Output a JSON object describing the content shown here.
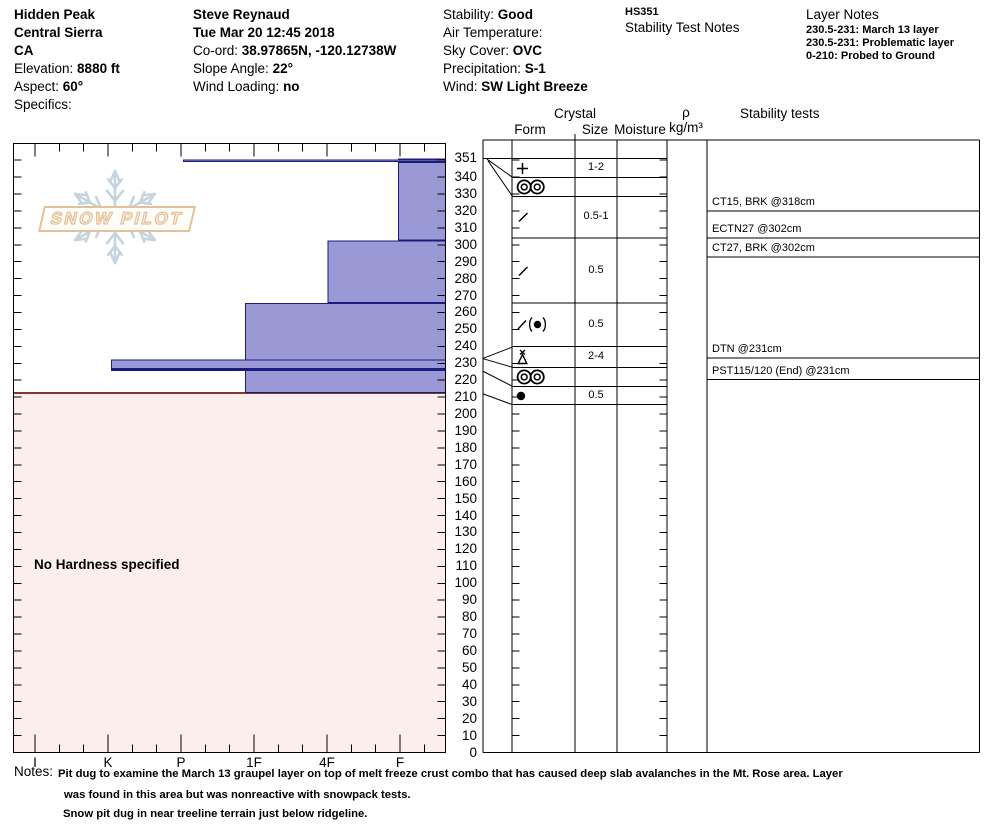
{
  "header": {
    "columns": [
      {
        "lines": [
          {
            "value": "Hidden Peak"
          },
          {
            "value": "Central Sierra"
          },
          {
            "value": "CA"
          },
          {
            "label": "Elevation: ",
            "value": "8880 ft"
          },
          {
            "label": "Aspect: ",
            "value": "60°"
          },
          {
            "label": "Specifics:"
          }
        ]
      },
      {
        "lines": [
          {
            "value": "Steve Reynaud"
          },
          {
            "value": "Tue Mar 20 12:45 2018"
          },
          {
            "label": "Co-ord: ",
            "value": "38.97865N, -120.12738W"
          },
          {
            "label": "Slope Angle: ",
            "value": "22°"
          },
          {
            "label": "Wind Loading: ",
            "value": "no"
          }
        ]
      },
      {
        "lines": [
          {
            "label": "Stability: ",
            "value": "Good"
          },
          {
            "label": "Air Temperature:"
          },
          {
            "label": "Sky Cover: ",
            "value": "OVC"
          },
          {
            "label": "Precipitation: ",
            "value": "S-1"
          },
          {
            "label": "Wind:  ",
            "value": "SW Light Breeze"
          }
        ]
      },
      {
        "lines": [
          {
            "value": "HS351",
            "small": true
          },
          {
            "label": "Stability Test Notes"
          }
        ]
      },
      {
        "lines": [
          {
            "label": "Layer Notes"
          },
          {
            "value": "230.5-231: March 13 layer",
            "small": true
          },
          {
            "value": "230.5-231: Problematic layer",
            "small": true
          },
          {
            "value": "0-210: Probed to Ground",
            "small": true
          }
        ]
      }
    ]
  },
  "watermark": {
    "text": "SNOW PILOT"
  },
  "grid_headers": {
    "crystal": "Crystal",
    "form": "Form",
    "size": "Size",
    "moisture": "Moisture",
    "rho": "ρ",
    "rho_unit": "kg/m³",
    "stability": "Stability tests"
  },
  "chart_data": {
    "type": "snow-profile",
    "depth_axis": {
      "unit": "cm",
      "min": 0,
      "max": 351,
      "tick_cm": 10,
      "surface_cm": 351
    },
    "hardness_axis": {
      "labels": [
        "I",
        "K",
        "P",
        "1F",
        "4F",
        "F"
      ]
    },
    "total_height_cm": 351,
    "layers": [
      {
        "top_cm": 351,
        "bottom_cm": 350.5,
        "form": "PP",
        "glyph": "plus",
        "size_mm": "1-2",
        "hardness": "F"
      },
      {
        "top_cm": 350.5,
        "bottom_cm": 349,
        "form": "MFcr",
        "glyph": "crust",
        "size_mm": "",
        "hardness": "P"
      },
      {
        "top_cm": 349,
        "bottom_cm": 302.5,
        "form": "DF",
        "glyph": "slash",
        "size_mm": "0.5-1",
        "hardness": "F"
      },
      {
        "top_cm": 302.5,
        "bottom_cm": 265.5,
        "form": "DF",
        "glyph": "slash",
        "size_mm": "0.5",
        "hardness": "4F"
      },
      {
        "top_cm": 265.5,
        "bottom_cm": 231,
        "form": "DF(RG)",
        "glyph": "slash-round",
        "size_mm": "0.5",
        "hardness": "1F"
      },
      {
        "top_cm": 231,
        "bottom_cm": 230.5,
        "form": "PPgp",
        "glyph": "graupel",
        "size_mm": "2-4",
        "hardness": "K"
      },
      {
        "top_cm": 230.5,
        "bottom_cm": 230,
        "form": "MFcr",
        "glyph": "crust",
        "size_mm": "",
        "hardness": "K"
      },
      {
        "top_cm": 230,
        "bottom_cm": 210,
        "form": "RG",
        "glyph": "round",
        "size_mm": "0.5",
        "hardness": "1F"
      }
    ],
    "no_hardness_region": {
      "top_cm": 210,
      "bottom_cm": 0,
      "label": "No Hardness specified"
    },
    "stability_tests": [
      {
        "label": "CT15, BRK @318cm",
        "depth_cm": 318
      },
      {
        "label": "ECTN27 @302cm",
        "depth_cm": 302
      },
      {
        "label": "CT27, BRK @302cm",
        "depth_cm": 302
      },
      {
        "label": "DTN @231cm",
        "depth_cm": 231
      },
      {
        "label": "PST115/120 (End) @231cm",
        "depth_cm": 231
      }
    ],
    "colors": {
      "bar_fill": "#9a99d5",
      "bar_border": "#1b1b7e",
      "no_hardness_fill": "#fdeeee",
      "no_hardness_border": "#7d3a30"
    }
  },
  "notes": {
    "label": "Notes:",
    "lines": [
      "Pit dug to examine the March 13 graupel layer on top of melt freeze crust combo that has caused deep slab avalanches in the Mt. Rose area.  Layer",
      "was found in this area but was nonreactive with snowpack tests.",
      "Snow pit dug in near treeline terrain just below ridgeline."
    ]
  }
}
